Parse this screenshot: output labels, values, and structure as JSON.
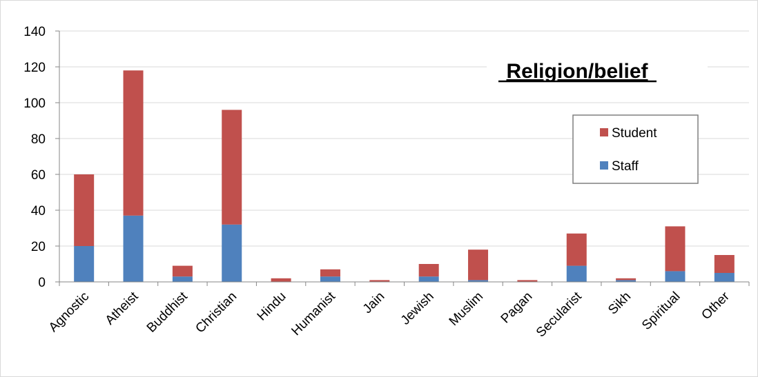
{
  "chart_data": {
    "type": "bar",
    "stacked": true,
    "title": "Religion/belief",
    "xlabel": "",
    "ylabel": "",
    "categories": [
      "Agnostic",
      "Atheist",
      "Buddhist",
      "Christian",
      "Hindu",
      "Humanist",
      "Jain",
      "Jewish",
      "Muslim",
      "Pagan",
      "Secularist",
      "Sikh",
      "Spiritual",
      "Other"
    ],
    "series": [
      {
        "name": "Staff",
        "color": "#4f81bd",
        "values": [
          20,
          37,
          3,
          32,
          0,
          3,
          0,
          3,
          1,
          0,
          9,
          1,
          6,
          5
        ]
      },
      {
        "name": "Student",
        "color": "#c0504d",
        "values": [
          40,
          81,
          6,
          64,
          2,
          4,
          1,
          7,
          17,
          1,
          18,
          1,
          25,
          10
        ]
      }
    ],
    "ylim": [
      0,
      140
    ],
    "yticks": [
      0,
      20,
      40,
      60,
      80,
      100,
      120,
      140
    ],
    "grid": "horizontal",
    "legend_position": "right",
    "legend_order": [
      "Student",
      "Staff"
    ]
  }
}
